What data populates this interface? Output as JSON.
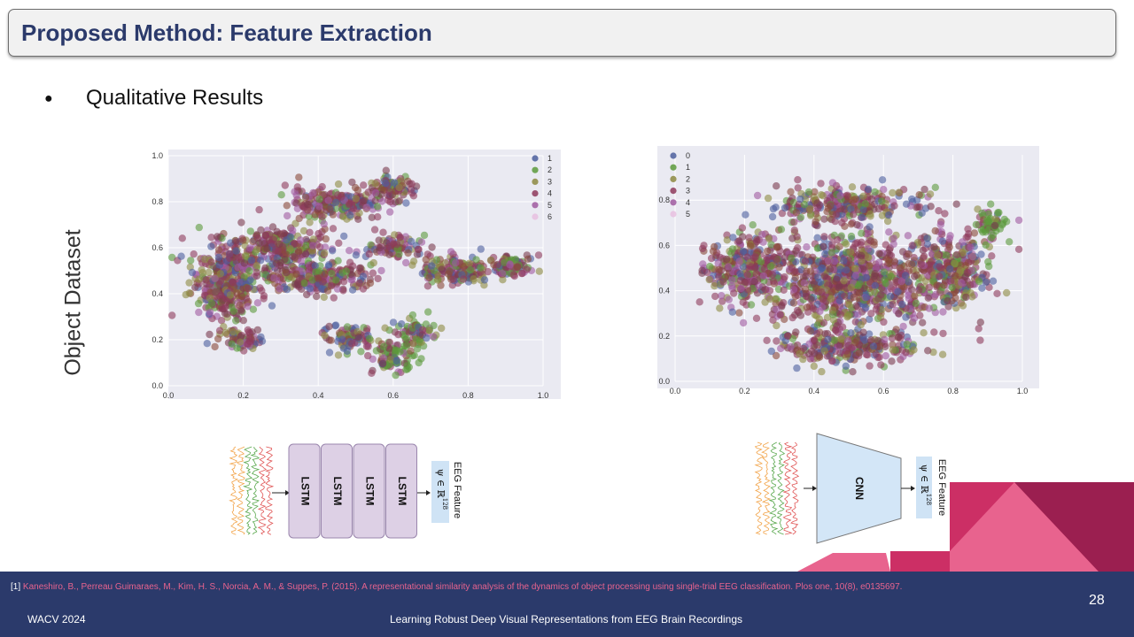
{
  "header": {
    "title": "Proposed Method: Feature Extraction"
  },
  "bullet": {
    "text": "Qualitative Results"
  },
  "side_label": "Object Dataset",
  "colors": {
    "header_text": "#2b3a6b",
    "footer_bg": "#2b3a6b",
    "accent_pink": "#e8638e",
    "accent_magenta": "#cc2f65",
    "accent_dark": "#9b1f50"
  },
  "chart_data": [
    {
      "type": "scatter",
      "title": "",
      "xlabel": "",
      "ylabel": "",
      "xlim": [
        0.0,
        1.0
      ],
      "ylim": [
        0.0,
        1.0
      ],
      "xticks": [
        "0.0",
        "0.2",
        "0.4",
        "0.6",
        "0.8",
        "1.0"
      ],
      "yticks": [
        "0.0",
        "0.2",
        "0.4",
        "0.6",
        "0.8",
        "1.0"
      ],
      "grid": true,
      "legend": "top-right",
      "series": [
        {
          "name": "1",
          "color": "#4c5f9e"
        },
        {
          "name": "2",
          "color": "#5c9a3c"
        },
        {
          "name": "3",
          "color": "#8d8a42"
        },
        {
          "name": "4",
          "color": "#8e3a5c"
        },
        {
          "name": "5",
          "color": "#a05aa0"
        },
        {
          "name": "6",
          "color": "#e7bfe0"
        }
      ],
      "clusters": [
        {
          "x": 0.15,
          "y": 0.45,
          "spread": [
            0.08,
            0.17
          ]
        },
        {
          "x": 0.3,
          "y": 0.6,
          "spread": [
            0.12,
            0.08
          ]
        },
        {
          "x": 0.45,
          "y": 0.79,
          "spread": [
            0.12,
            0.06
          ]
        },
        {
          "x": 0.6,
          "y": 0.86,
          "spread": [
            0.06,
            0.05
          ]
        },
        {
          "x": 0.4,
          "y": 0.47,
          "spread": [
            0.14,
            0.06
          ]
        },
        {
          "x": 0.6,
          "y": 0.6,
          "spread": [
            0.06,
            0.05
          ]
        },
        {
          "x": 0.78,
          "y": 0.5,
          "spread": [
            0.1,
            0.06
          ]
        },
        {
          "x": 0.92,
          "y": 0.52,
          "spread": [
            0.05,
            0.05
          ]
        },
        {
          "x": 0.48,
          "y": 0.21,
          "spread": [
            0.06,
            0.05
          ]
        },
        {
          "x": 0.6,
          "y": 0.12,
          "spread": [
            0.05,
            0.06
          ]
        },
        {
          "x": 0.66,
          "y": 0.23,
          "spread": [
            0.05,
            0.05
          ]
        },
        {
          "x": 0.2,
          "y": 0.2,
          "spread": [
            0.05,
            0.04
          ]
        }
      ]
    },
    {
      "type": "scatter",
      "title": "",
      "xlabel": "",
      "ylabel": "",
      "xlim": [
        0.0,
        1.0
      ],
      "ylim": [
        0.0,
        1.0
      ],
      "xticks": [
        "0.0",
        "0.2",
        "0.4",
        "0.6",
        "0.8",
        "1.0"
      ],
      "yticks": [
        "0.0",
        "0.2",
        "0.4",
        "0.6",
        "0.8"
      ],
      "grid": true,
      "legend": "top-left",
      "series": [
        {
          "name": "0",
          "color": "#4c5f9e"
        },
        {
          "name": "1",
          "color": "#5c9a3c"
        },
        {
          "name": "2",
          "color": "#8d8a42"
        },
        {
          "name": "3",
          "color": "#8e3a5c"
        },
        {
          "name": "4",
          "color": "#a05aa0"
        },
        {
          "name": "5",
          "color": "#e7bfe0"
        }
      ],
      "clusters": [
        {
          "x": 0.5,
          "y": 0.45,
          "spread": [
            0.25,
            0.19
          ]
        },
        {
          "x": 0.2,
          "y": 0.5,
          "spread": [
            0.1,
            0.13
          ]
        },
        {
          "x": 0.8,
          "y": 0.5,
          "spread": [
            0.1,
            0.13
          ]
        },
        {
          "x": 0.5,
          "y": 0.78,
          "spread": [
            0.18,
            0.07
          ]
        },
        {
          "x": 0.5,
          "y": 0.15,
          "spread": [
            0.18,
            0.07
          ]
        },
        {
          "x": 0.9,
          "y": 0.7,
          "spread": [
            0.05,
            0.06
          ]
        }
      ]
    }
  ],
  "diagram_left": {
    "blocks": [
      "LSTM",
      "LSTM",
      "LSTM",
      "LSTM"
    ],
    "feature_label": "EEG Feature",
    "feature_math": "ψ ∈ ℝ",
    "feature_exp": "128"
  },
  "diagram_right": {
    "block": "CNN",
    "feature_label": "EEG Feature",
    "feature_math": "ψ ∈ ℝ",
    "feature_exp": "128"
  },
  "footer": {
    "citation_ref": "[1]",
    "citation": "Kaneshiro, B., Perreau Guimaraes, M., Kim, H. S., Norcia, A. M., & Suppes, P. (2015). A representational similarity analysis of the dynamics of object processing using single-trial EEG classification. Plos one, 10(8), e0135697.",
    "conference": "WACV 2024",
    "paper_title": "Learning Robust Deep Visual Representations from EEG Brain Recordings",
    "page_number": "28"
  }
}
